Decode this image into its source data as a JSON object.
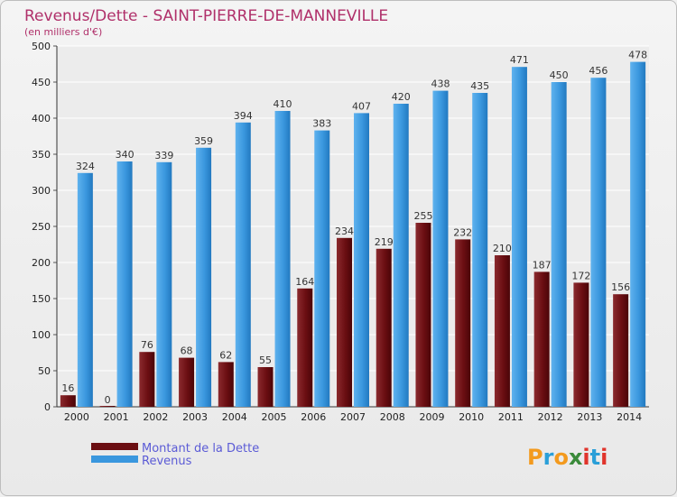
{
  "chart_data": {
    "type": "bar",
    "title": "Revenus/Dette - SAINT-PIERRE-DE-MANNEVILLE",
    "subtitle": "(en milliers d'€)",
    "categories": [
      "2000",
      "2001",
      "2002",
      "2003",
      "2004",
      "2005",
      "2006",
      "2007",
      "2008",
      "2009",
      "2010",
      "2011",
      "2012",
      "2013",
      "2014"
    ],
    "series": [
      {
        "name": "Montant de la Dette",
        "color": "#6b0e12",
        "values": [
          16,
          0,
          76,
          68,
          62,
          55,
          164,
          234,
          219,
          255,
          232,
          210,
          187,
          172,
          156
        ]
      },
      {
        "name": "Revenus",
        "color": "#3a97de",
        "values": [
          324,
          340,
          339,
          359,
          394,
          410,
          383,
          407,
          420,
          438,
          435,
          471,
          450,
          456,
          478
        ]
      }
    ],
    "ylim": [
      0,
      500
    ],
    "yticks": [
      0,
      50,
      100,
      150,
      200,
      250,
      300,
      350,
      400,
      450,
      500
    ],
    "grid": true,
    "legend_position": "bottom-left"
  },
  "logo": {
    "text": "Proxiti"
  }
}
